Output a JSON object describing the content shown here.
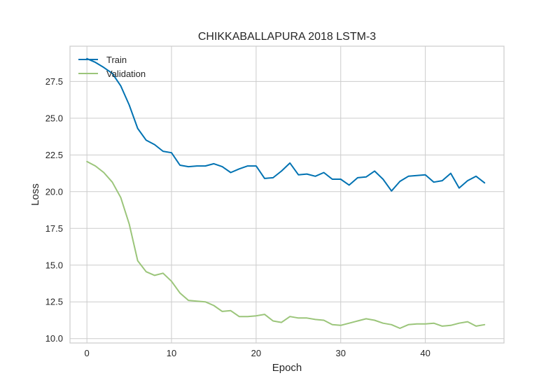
{
  "chart_data": {
    "type": "line",
    "title": "CHIKKABALLAPURA 2018 LSTM-3",
    "xlabel": "Epoch",
    "ylabel": "Loss",
    "xlim": [
      -2,
      49.3
    ],
    "ylim": [
      9.7,
      29.9
    ],
    "xticks": [
      0,
      10,
      20,
      30,
      40
    ],
    "yticks": [
      10.0,
      12.5,
      15.0,
      17.5,
      20.0,
      22.5,
      25.0,
      27.5
    ],
    "ytick_labels": [
      "10.0",
      "12.5",
      "15.0",
      "17.5",
      "20.0",
      "22.5",
      "25.0",
      "27.5"
    ],
    "grid": true,
    "legend_position": "top-left",
    "x": [
      0,
      1,
      2,
      3,
      4,
      5,
      6,
      7,
      8,
      9,
      10,
      11,
      12,
      13,
      14,
      15,
      16,
      17,
      18,
      19,
      20,
      21,
      22,
      23,
      24,
      25,
      26,
      27,
      28,
      29,
      30,
      31,
      32,
      33,
      34,
      35,
      36,
      37,
      38,
      39,
      40,
      41,
      42,
      43,
      44,
      45,
      46,
      47
    ],
    "series": [
      {
        "name": "Train",
        "color": "#0072b2",
        "values": [
          29.05,
          28.8,
          28.45,
          28.05,
          27.2,
          25.9,
          24.3,
          23.5,
          23.2,
          22.75,
          22.65,
          21.8,
          21.7,
          21.75,
          21.75,
          21.9,
          21.7,
          21.3,
          21.55,
          21.75,
          21.75,
          20.9,
          20.95,
          21.4,
          21.95,
          21.15,
          21.2,
          21.05,
          21.3,
          20.85,
          20.85,
          20.45,
          20.95,
          21.0,
          21.4,
          20.85,
          20.05,
          20.7,
          21.05,
          21.1,
          21.15,
          20.65,
          20.75,
          21.25,
          20.25,
          20.75,
          21.05,
          20.6
        ]
      },
      {
        "name": "Validation",
        "color": "#9bc57a",
        "values": [
          22.05,
          21.75,
          21.3,
          20.65,
          19.6,
          17.8,
          15.3,
          14.55,
          14.3,
          14.45,
          13.9,
          13.1,
          12.6,
          12.55,
          12.5,
          12.25,
          11.85,
          11.9,
          11.5,
          11.5,
          11.55,
          11.65,
          11.2,
          11.1,
          11.5,
          11.4,
          11.4,
          11.3,
          11.25,
          10.95,
          10.9,
          11.05,
          11.2,
          11.35,
          11.25,
          11.05,
          10.95,
          10.7,
          10.95,
          11.0,
          11.0,
          11.05,
          10.85,
          10.9,
          11.05,
          11.15,
          10.85,
          10.95
        ]
      }
    ]
  }
}
